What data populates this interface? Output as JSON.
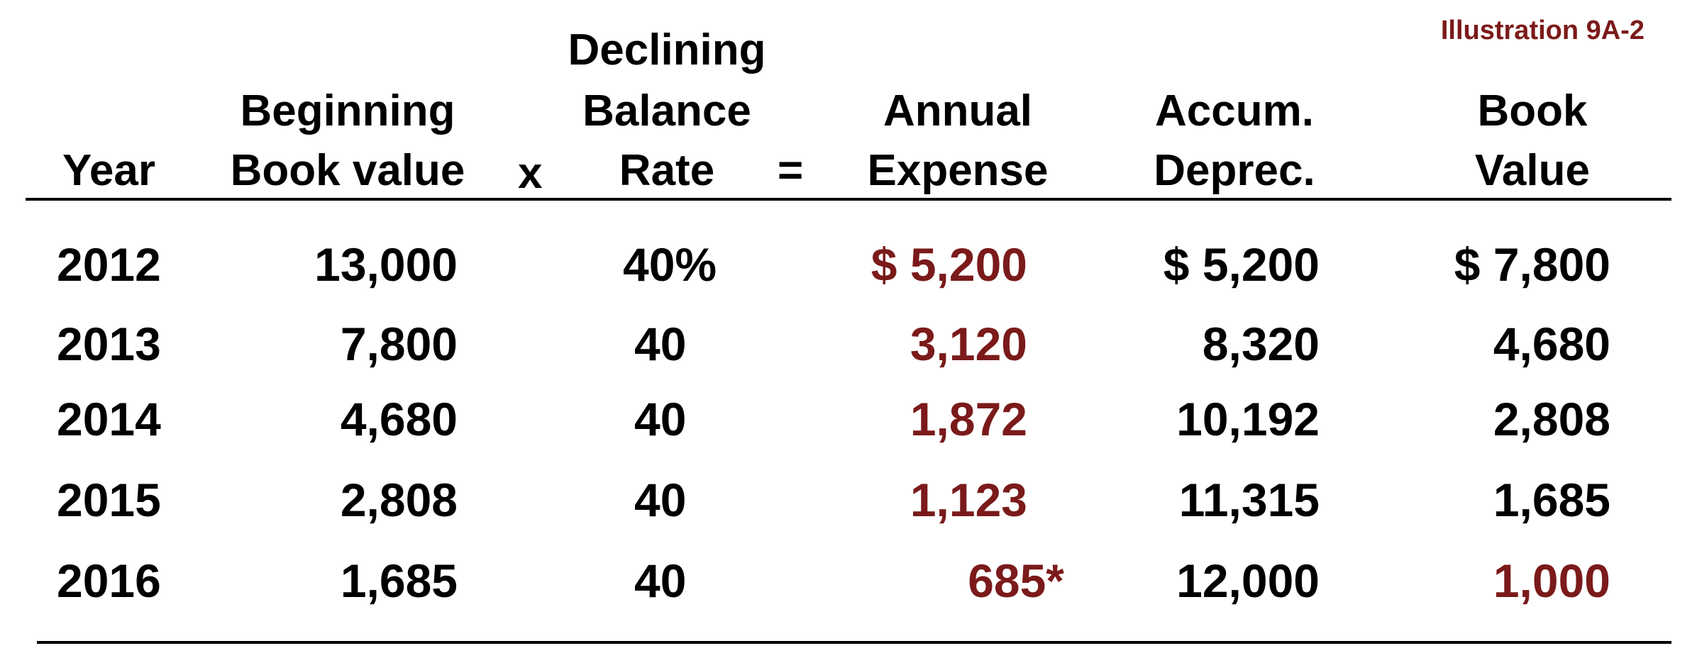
{
  "illustration_label": "Illustration 9A-2",
  "headers": {
    "year": "Year",
    "beginning_line1": "Beginning",
    "beginning_line2": "Book value",
    "times": "x",
    "rate_line1": "Declining",
    "rate_line2": "Balance",
    "rate_line3": "Rate",
    "equals": "=",
    "expense_line1": "Annual",
    "expense_line2": "Expense",
    "accum_line1": "Accum.",
    "accum_line2": "Deprec.",
    "book_line1": "Book",
    "book_line2": "Value"
  },
  "rows": [
    {
      "year": "2012",
      "beginning": "13,000",
      "rate": "40%",
      "expense": "$ 5,200",
      "accum": "$ 5,200",
      "book": "$ 7,800"
    },
    {
      "year": "2013",
      "beginning": "7,800",
      "rate": "40",
      "expense": "3,120",
      "accum": "8,320",
      "book": "4,680"
    },
    {
      "year": "2014",
      "beginning": "4,680",
      "rate": "40",
      "expense": "1,872",
      "accum": "10,192",
      "book": "2,808"
    },
    {
      "year": "2015",
      "beginning": "2,808",
      "rate": "40",
      "expense": "1,123",
      "accum": "11,315",
      "book": "1,685"
    },
    {
      "year": "2016",
      "beginning": "1,685",
      "rate": "40",
      "expense": "685*",
      "accum": "12,000",
      "book": "1,000"
    }
  ],
  "colors": {
    "highlight": "#7b1a1a",
    "text": "#000000"
  }
}
